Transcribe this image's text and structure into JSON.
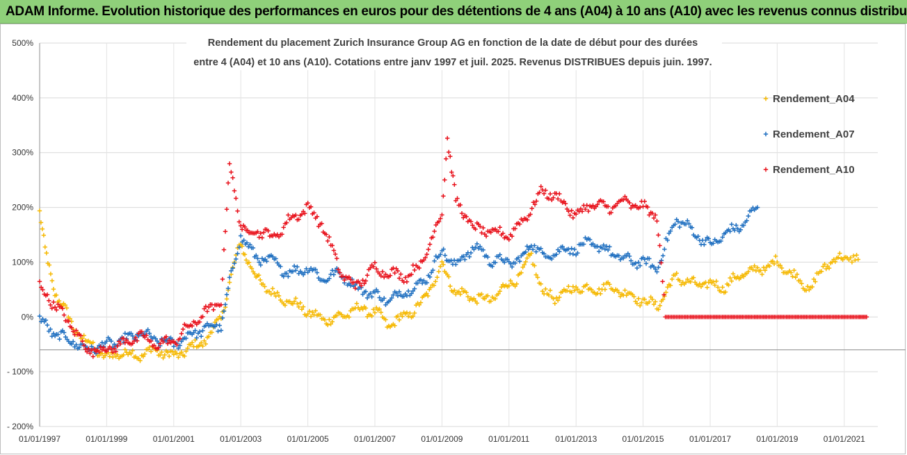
{
  "banner": {
    "title": "ADAM Informe. Evolution historique des performances en euros pour des détentions de 4 ans (A04) à 10 ans (A10) avec les revenus connus distribués"
  },
  "chart_data": {
    "type": "scatter",
    "title_line1": "Rendement du placement Zurich Insurance Group AG en fonction de la date de début pour des durées",
    "title_line2": "entre 4 (A04) et 10 ans (A10).  Cotations entre janv 1997 et juil. 2025. Revenus DISTRIBUES depuis juin. 1997.",
    "xlabel": "",
    "ylabel": "",
    "ylim": [
      -200,
      500
    ],
    "yticks": [
      -200,
      -100,
      0,
      100,
      200,
      300,
      400,
      500
    ],
    "ytick_labels": [
      "- 200%",
      "- 100%",
      "0%",
      "100%",
      "200%",
      "300%",
      "400%",
      "500%"
    ],
    "xlim": [
      "1997-01-01",
      "2022-01-01"
    ],
    "xtick_labels": [
      "01/01/1997",
      "01/01/1999",
      "01/01/2001",
      "01/01/2003",
      "01/01/2005",
      "01/01/2007",
      "01/01/2009",
      "01/01/2011",
      "01/01/2013",
      "01/01/2015",
      "01/01/2017",
      "01/01/2019",
      "01/01/2021"
    ],
    "grid": true,
    "legend_position": "right",
    "series": [
      {
        "name": "Rendement_A04",
        "color": "#f5b800",
        "x": [
          "1997-01-01",
          "1997-03-01",
          "1997-06-01",
          "1997-09-01",
          "1998-01-01",
          "1998-06-01",
          "1999-01-01",
          "1999-06-01",
          "2000-01-01",
          "2000-06-01",
          "2001-01-01",
          "2001-06-01",
          "2002-01-01",
          "2002-06-01",
          "2002-09-01",
          "2003-01-01",
          "2003-03-01",
          "2003-06-01",
          "2003-09-01",
          "2004-01-01",
          "2004-06-01",
          "2005-01-01",
          "2005-06-01",
          "2006-01-01",
          "2006-06-01",
          "2007-01-01",
          "2007-06-01",
          "2008-01-01",
          "2008-06-01",
          "2008-09-01",
          "2009-01-01",
          "2009-03-01",
          "2009-06-01",
          "2010-01-01",
          "2010-06-01",
          "2011-01-01",
          "2011-06-01",
          "2011-09-01",
          "2012-01-01",
          "2012-06-01",
          "2013-01-01",
          "2013-06-01",
          "2014-01-01",
          "2014-06-01",
          "2015-01-01",
          "2015-06-01",
          "2016-01-01",
          "2016-06-01",
          "2017-01-01",
          "2017-06-01",
          "2018-01-01",
          "2018-06-01",
          "2019-01-01",
          "2019-06-01",
          "2020-01-01",
          "2020-06-01",
          "2021-01-01",
          "2021-06-01"
        ],
        "y": [
          195,
          120,
          50,
          25,
          -20,
          -45,
          -75,
          -65,
          -70,
          -60,
          -72,
          -60,
          -40,
          0,
          60,
          140,
          110,
          75,
          60,
          40,
          30,
          10,
          -5,
          0,
          15,
          10,
          -15,
          5,
          25,
          55,
          95,
          75,
          45,
          35,
          30,
          60,
          80,
          115,
          45,
          35,
          55,
          50,
          55,
          45,
          30,
          20,
          75,
          60,
          60,
          55,
          80,
          85,
          100,
          80,
          50,
          95,
          110,
          105
        ]
      },
      {
        "name": "Rendement_A07",
        "color": "#1f6fc0",
        "x": [
          "1997-01-01",
          "1997-06-01",
          "1998-01-01",
          "1998-06-01",
          "1999-01-01",
          "1999-06-01",
          "2000-01-01",
          "2000-06-01",
          "2001-01-01",
          "2001-06-01",
          "2002-01-01",
          "2002-06-01",
          "2002-09-01",
          "2003-01-01",
          "2003-06-01",
          "2004-01-01",
          "2004-06-01",
          "2005-01-01",
          "2005-06-01",
          "2006-01-01",
          "2006-06-01",
          "2007-01-01",
          "2007-06-01",
          "2008-01-01",
          "2008-06-01",
          "2009-01-01",
          "2009-06-01",
          "2010-01-01",
          "2010-06-01",
          "2011-01-01",
          "2011-06-01",
          "2011-09-01",
          "2012-01-01",
          "2012-06-01",
          "2013-01-01",
          "2013-06-01",
          "2014-01-01",
          "2014-06-01",
          "2015-01-01",
          "2015-06-01",
          "2016-01-01",
          "2016-06-01",
          "2017-01-01",
          "2017-06-01",
          "2018-01-01",
          "2018-06-01"
        ],
        "y": [
          -5,
          -30,
          -45,
          -60,
          -50,
          -45,
          -30,
          -40,
          -50,
          -35,
          -20,
          -15,
          60,
          150,
          110,
          100,
          80,
          90,
          70,
          80,
          55,
          40,
          30,
          50,
          60,
          120,
          95,
          130,
          105,
          100,
          105,
          140,
          110,
          120,
          125,
          135,
          120,
          105,
          100,
          90,
          180,
          160,
          130,
          150,
          170,
          200
        ]
      },
      {
        "name": "Rendement_A10",
        "color": "#e8101a",
        "x": [
          "1997-01-01",
          "1997-06-01",
          "1998-01-01",
          "1998-06-01",
          "1999-01-01",
          "1999-06-01",
          "2000-01-01",
          "2000-06-01",
          "2001-01-01",
          "2001-06-01",
          "2002-01-01",
          "2002-06-01",
          "2002-09-01",
          "2003-01-01",
          "2003-03-01",
          "2003-06-01",
          "2004-01-01",
          "2004-06-01",
          "2005-01-01",
          "2005-06-01",
          "2006-01-01",
          "2006-06-01",
          "2007-01-01",
          "2007-06-01",
          "2008-01-01",
          "2008-06-01",
          "2009-01-01",
          "2009-03-01",
          "2009-06-01",
          "2010-01-01",
          "2010-06-01",
          "2011-01-01",
          "2011-06-01",
          "2012-01-01",
          "2012-06-01",
          "2013-01-01",
          "2013-06-01",
          "2014-01-01",
          "2014-06-01",
          "2015-01-01",
          "2015-06-01",
          "2015-09-01",
          "2016-06-01",
          "2017-06-01",
          "2018-06-01",
          "2019-06-01",
          "2020-06-01",
          "2021-06-01",
          "2021-09-01"
        ],
        "y": [
          55,
          25,
          -20,
          -60,
          -60,
          -50,
          -35,
          -50,
          -45,
          -20,
          10,
          30,
          280,
          170,
          150,
          160,
          145,
          175,
          200,
          170,
          80,
          55,
          90,
          80,
          75,
          100,
          190,
          330,
          210,
          160,
          155,
          150,
          175,
          230,
          220,
          185,
          205,
          200,
          210,
          200,
          185,
          0,
          0,
          0,
          0,
          0,
          0,
          0,
          0
        ]
      }
    ]
  }
}
